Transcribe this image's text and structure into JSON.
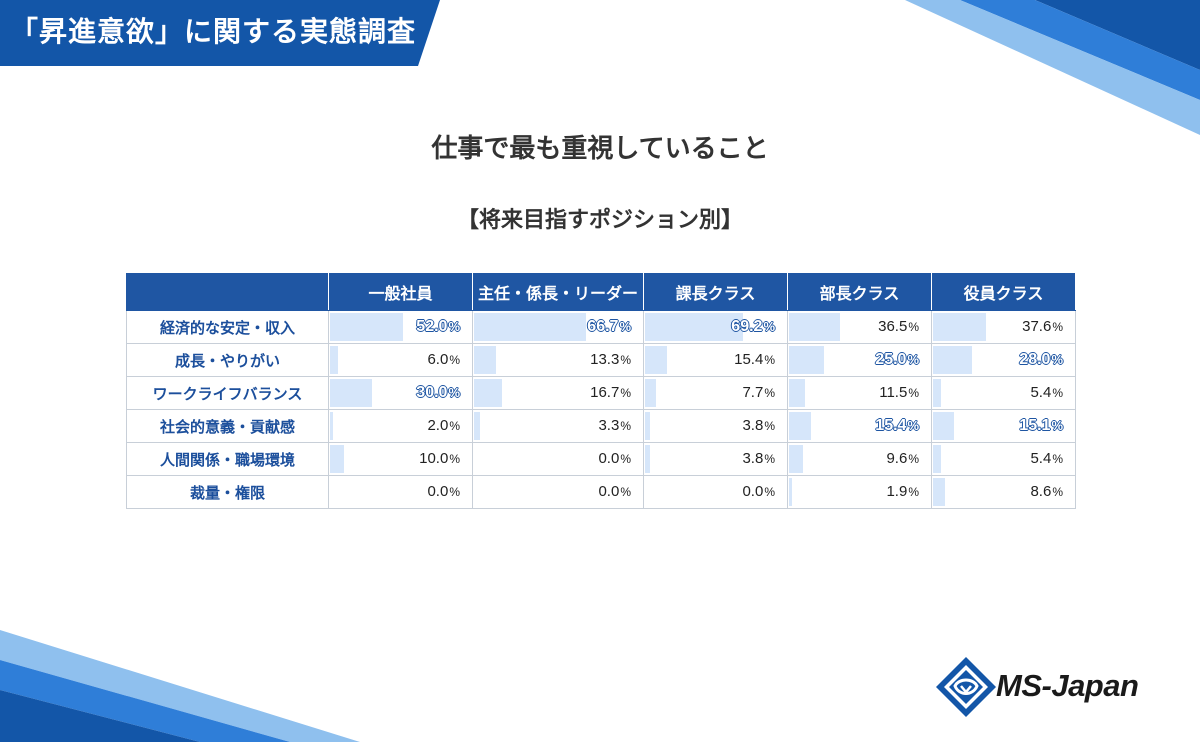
{
  "header": {
    "title": "「昇進意欲」に関する実態調査"
  },
  "main_title": "仕事で最も重視していること",
  "sub_title": "【将来目指すポジション別】",
  "logo": {
    "text": "MS-Japan",
    "icon": "ms-japan-diamond-logo-icon"
  },
  "colors": {
    "header_blue": "#1f56a3",
    "bar_blue": "#d6e6fa",
    "label_blue": "#1c4f9c"
  },
  "chart_data": {
    "type": "table",
    "title": "仕事で最も重視していること",
    "subtitle": "【将来目指すポジション別】",
    "unit": "%",
    "columns": [
      "一般社員",
      "主任・係長・リーダー",
      "課長クラス",
      "部長クラス",
      "役員クラス"
    ],
    "rows": [
      {
        "label": "経済的な安定・収入",
        "values": [
          52.0,
          66.7,
          69.2,
          36.5,
          37.6
        ],
        "highlight": [
          true,
          true,
          true,
          false,
          false
        ]
      },
      {
        "label": "成長・やりがい",
        "values": [
          6.0,
          13.3,
          15.4,
          25.0,
          28.0
        ],
        "highlight": [
          false,
          false,
          false,
          true,
          true
        ]
      },
      {
        "label": "ワークライフバランス",
        "values": [
          30.0,
          16.7,
          7.7,
          11.5,
          5.4
        ],
        "highlight": [
          true,
          false,
          false,
          false,
          false
        ]
      },
      {
        "label": "社会的意義・貢献感",
        "values": [
          2.0,
          3.3,
          3.8,
          15.4,
          15.1
        ],
        "highlight": [
          false,
          false,
          false,
          true,
          true
        ]
      },
      {
        "label": "人間関係・職場環境",
        "values": [
          10.0,
          0.0,
          3.8,
          9.6,
          5.4
        ],
        "highlight": [
          false,
          false,
          false,
          false,
          false
        ]
      },
      {
        "label": "裁量・権限",
        "values": [
          0.0,
          0.0,
          0.0,
          1.9,
          8.6
        ],
        "highlight": [
          false,
          false,
          false,
          false,
          false
        ]
      }
    ]
  }
}
